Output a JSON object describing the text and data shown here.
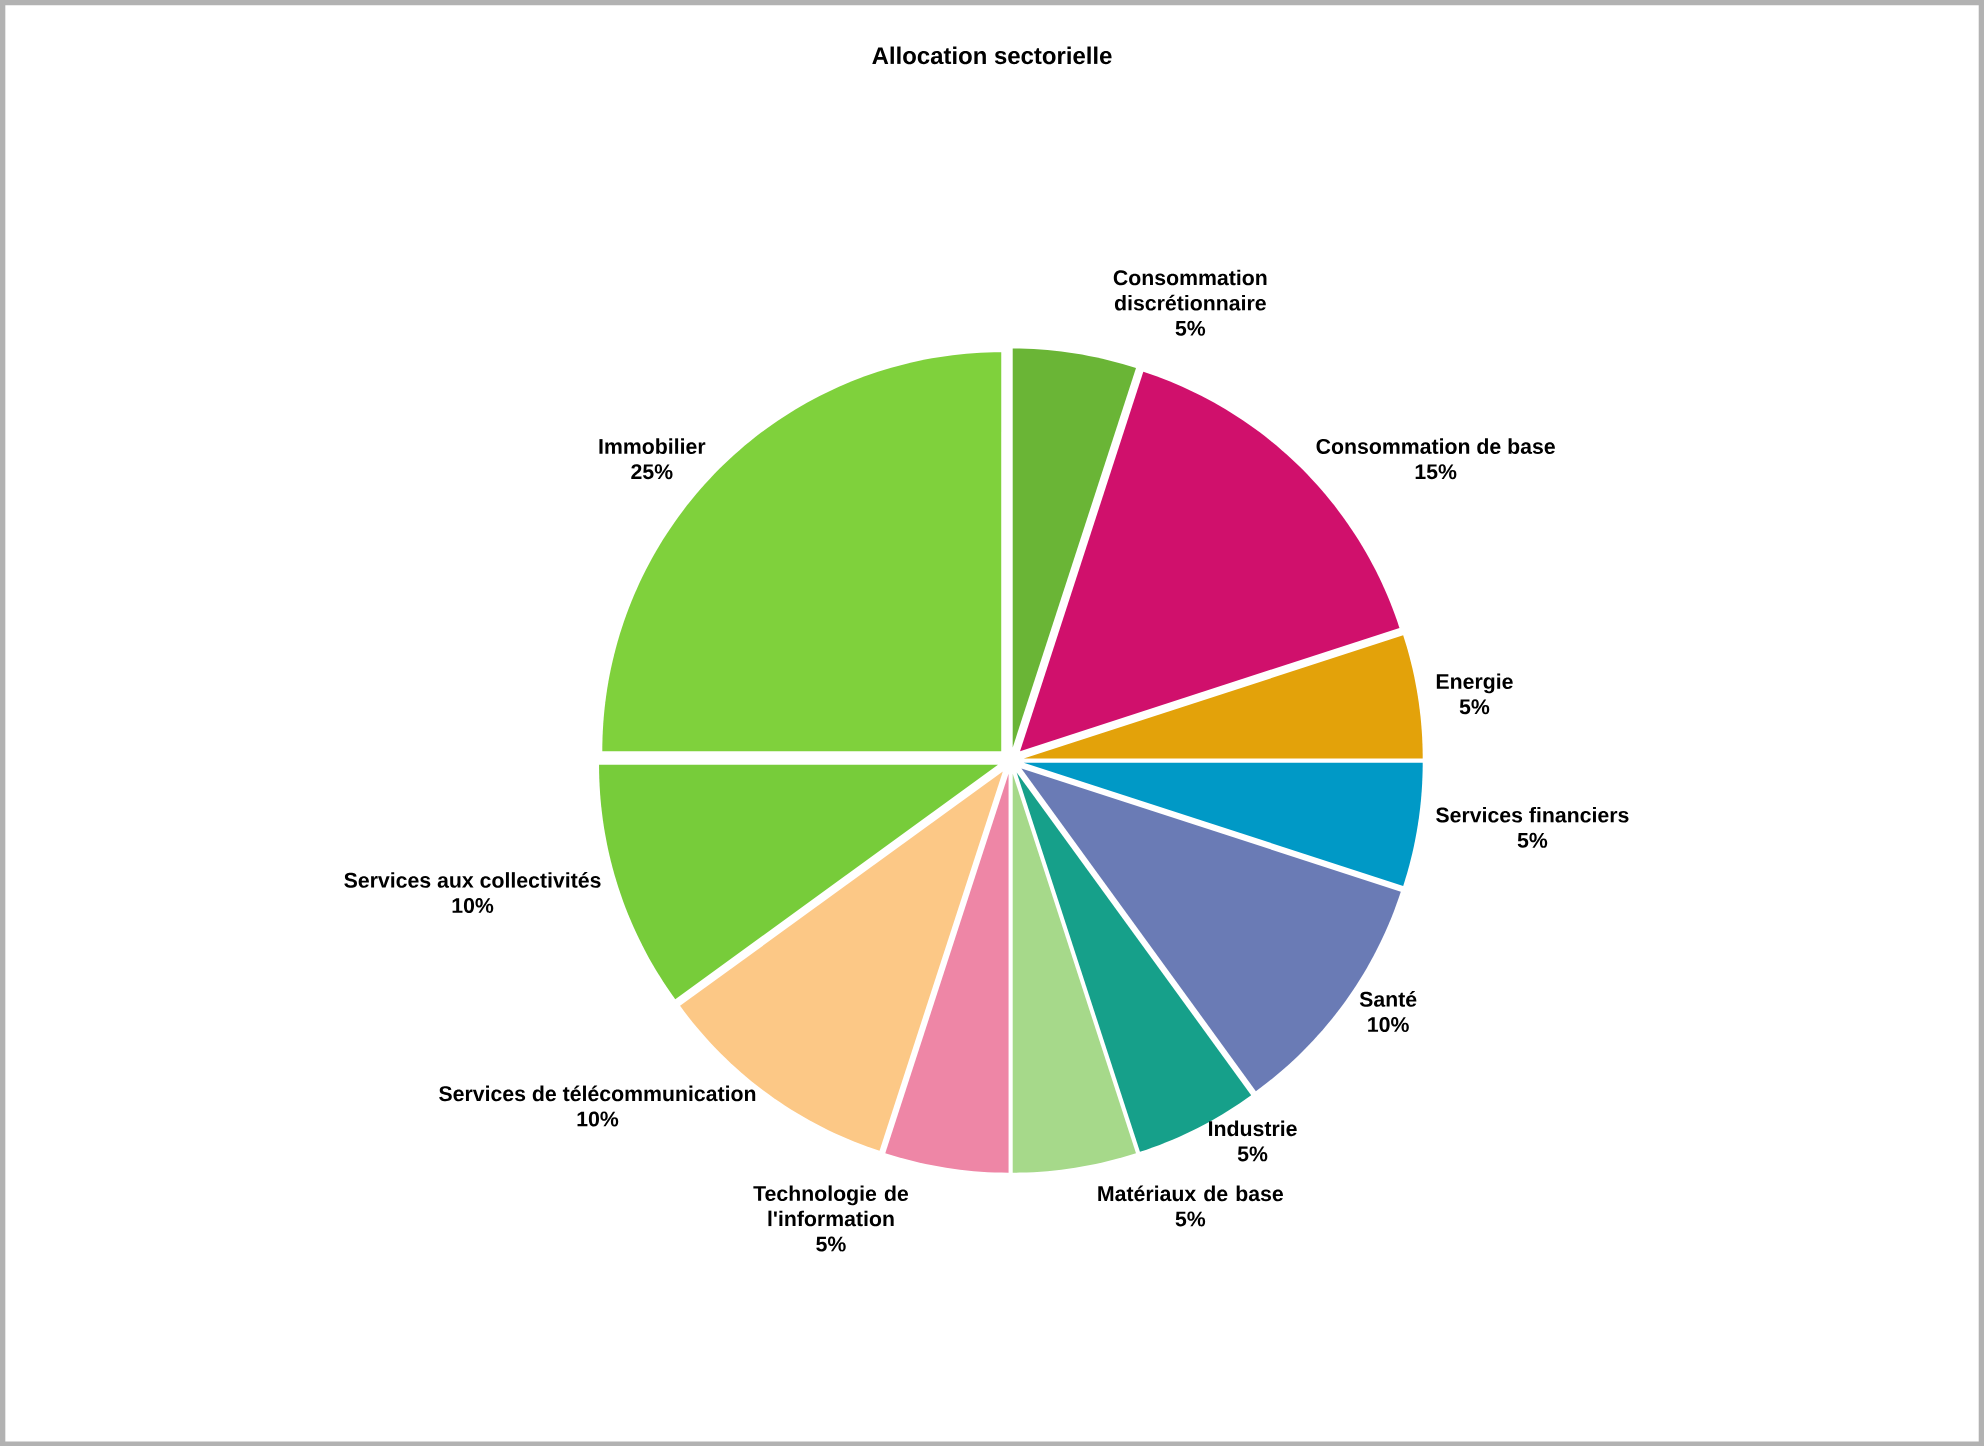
{
  "chart_data": {
    "type": "pie",
    "title": "Allocation sectorielle",
    "categories": [
      "Consommation discrétionnaire",
      "Consommation de base",
      "Energie",
      "Services financiers",
      "Santé",
      "Industrie",
      "Matériaux de base",
      "Technologie de l'information",
      "Services de télécommunication",
      "Services aux collectivités",
      "Immobilier"
    ],
    "values": [
      5,
      15,
      5,
      5,
      10,
      5,
      5,
      5,
      10,
      10,
      25
    ],
    "value_labels": [
      "5%",
      "15%",
      "5%",
      "5%",
      "10%",
      "5%",
      "5%",
      "5%",
      "10%",
      "10%",
      "25%"
    ],
    "colors": [
      "#6ab536",
      "#d0106c",
      "#e3a20a",
      "#0099c6",
      "#6a7bb5",
      "#16a08a",
      "#a6d98a",
      "#ee86a6",
      "#fcc886",
      "#77cc3a",
      "#7fd13c"
    ],
    "legend": false
  }
}
